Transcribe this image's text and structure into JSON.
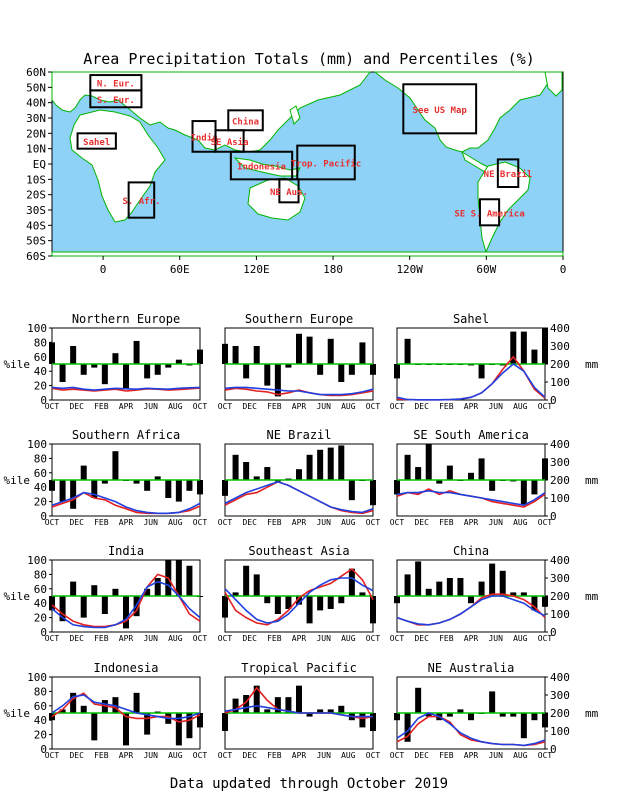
{
  "title": "Area Precipitation Totals (mm) and Percentiles (%)",
  "footer": "Data updated through October 2019",
  "map": {
    "lat_labels": [
      "60N",
      "50N",
      "40N",
      "30N",
      "20N",
      "10N",
      "EQ",
      "10S",
      "20S",
      "30S",
      "40S",
      "50S",
      "60S"
    ],
    "lon_labels": [
      "0",
      "60E",
      "120E",
      "180",
      "120W",
      "60W",
      "0"
    ],
    "regions": [
      {
        "label": "N. Eur.",
        "lon": [
          -10,
          30
        ],
        "lat": [
          48,
          58
        ]
      },
      {
        "label": "S. Eur.",
        "lon": [
          -10,
          30
        ],
        "lat": [
          37,
          48
        ]
      },
      {
        "label": "Sahel",
        "lon": [
          -20,
          10
        ],
        "lat": [
          10,
          20
        ]
      },
      {
        "label": "S. Afr.",
        "lon": [
          20,
          40
        ],
        "lat": [
          -35,
          -12
        ]
      },
      {
        "label": "India",
        "lon": [
          70,
          88
        ],
        "lat": [
          8,
          28
        ]
      },
      {
        "label": "China",
        "lon": [
          98,
          125
        ],
        "lat": [
          22,
          35
        ]
      },
      {
        "label": "SE Asia",
        "lon": [
          88,
          110
        ],
        "lat": [
          8,
          22
        ]
      },
      {
        "label": "Indonesia",
        "lon": [
          100,
          148
        ],
        "lat": [
          -10,
          8
        ]
      },
      {
        "label": "Trop. Pacific",
        "lon": [
          152,
          197
        ],
        "lat": [
          -10,
          12
        ]
      },
      {
        "label": "NE Aus.",
        "lon": [
          138,
          153
        ],
        "lat": [
          -25,
          -10
        ]
      },
      {
        "label": "See US Map",
        "lon": [
          235,
          292
        ],
        "lat": [
          20,
          52
        ]
      },
      {
        "label": "NE Brazil",
        "lon": [
          309,
          325
        ],
        "lat": [
          -15,
          3
        ]
      },
      {
        "label": "SE S. America",
        "lon": [
          295,
          310
        ],
        "lat": [
          -40,
          -23
        ]
      }
    ]
  },
  "panel_axes": {
    "left_ticks": [
      "0",
      "20",
      "40",
      "60",
      "80",
      "100"
    ],
    "right_ticks": [
      "0",
      "100",
      "200",
      "300",
      "400"
    ],
    "left_unit": "%ile",
    "right_unit": "mm",
    "months": [
      "OCT",
      "DEC",
      "FEB",
      "APR",
      "JUN",
      "AUG",
      "OCT"
    ]
  },
  "colors": {
    "ocean": "#8fd2f8",
    "land": "#ffffff",
    "coast": "#00b400",
    "region_box": "#000000",
    "region_label": "#e83030",
    "percentile_bar": "#000000",
    "median_line": "#00c000",
    "red_line": "#e42020",
    "blue_line": "#2040e0"
  },
  "chart_data": [
    {
      "type": "bar",
      "title": "Northern Europe",
      "ylim": [
        0,
        100
      ],
      "y2lim": [
        0,
        400
      ],
      "percentile": [
        80,
        25,
        75,
        35,
        45,
        22,
        65,
        15,
        82,
        30,
        35,
        45,
        56,
        48,
        70
      ],
      "red_mm": [
        65,
        55,
        60,
        55,
        50,
        55,
        60,
        50,
        55,
        62,
        60,
        55,
        58,
        62,
        66
      ],
      "blue_mm": [
        70,
        65,
        70,
        60,
        55,
        60,
        65,
        62,
        60,
        65,
        62,
        60,
        65,
        68,
        70
      ]
    },
    {
      "type": "bar",
      "title": "Southern Europe",
      "ylim": [
        0,
        100
      ],
      "y2lim": [
        0,
        400
      ],
      "percentile": [
        78,
        75,
        30,
        75,
        20,
        5,
        45,
        92,
        88,
        35,
        85,
        25,
        35,
        80,
        35
      ],
      "red_mm": [
        55,
        65,
        60,
        50,
        45,
        30,
        40,
        55,
        40,
        30,
        25,
        25,
        30,
        40,
        50
      ],
      "blue_mm": [
        65,
        70,
        70,
        65,
        60,
        55,
        50,
        50,
        40,
        30,
        30,
        30,
        35,
        45,
        60
      ]
    },
    {
      "type": "bar",
      "title": "Sahel",
      "ylim": [
        0,
        100
      ],
      "y2lim": [
        0,
        400
      ],
      "percentile": [
        30,
        85,
        50,
        50,
        50,
        50,
        50,
        48,
        30,
        50,
        48,
        95,
        95,
        70,
        100
      ],
      "red_mm": [
        5,
        2,
        1,
        1,
        1,
        2,
        5,
        15,
        40,
        90,
        170,
        240,
        160,
        60,
        10
      ],
      "blue_mm": [
        15,
        2,
        1,
        1,
        1,
        2,
        5,
        15,
        40,
        90,
        150,
        200,
        160,
        70,
        15
      ]
    },
    {
      "type": "bar",
      "title": "Southern Africa",
      "ylim": [
        0,
        100
      ],
      "y2lim": [
        0,
        400
      ],
      "percentile": [
        35,
        20,
        10,
        70,
        25,
        45,
        90,
        50,
        45,
        35,
        55,
        25,
        20,
        35,
        30
      ],
      "red_mm": [
        50,
        70,
        90,
        130,
        100,
        90,
        60,
        40,
        20,
        15,
        15,
        15,
        20,
        30,
        55
      ],
      "blue_mm": [
        60,
        80,
        100,
        130,
        120,
        100,
        80,
        50,
        30,
        20,
        15,
        15,
        20,
        40,
        70
      ]
    },
    {
      "type": "bar",
      "title": "NE Brazil",
      "ylim": [
        0,
        100
      ],
      "y2lim": [
        0,
        400
      ],
      "percentile": [
        28,
        85,
        75,
        55,
        68,
        48,
        52,
        65,
        85,
        92,
        95,
        98,
        22,
        50,
        15
      ],
      "red_mm": [
        60,
        90,
        120,
        130,
        160,
        190,
        170,
        140,
        110,
        80,
        50,
        30,
        20,
        15,
        30
      ],
      "blue_mm": [
        70,
        100,
        130,
        150,
        170,
        190,
        170,
        140,
        110,
        80,
        50,
        35,
        25,
        20,
        40
      ]
    },
    {
      "type": "bar",
      "title": "SE South America",
      "ylim": [
        0,
        100
      ],
      "y2lim": [
        0,
        400
      ],
      "percentile": [
        30,
        85,
        68,
        100,
        45,
        70,
        50,
        60,
        80,
        35,
        50,
        48,
        15,
        30,
        80
      ],
      "red_mm": [
        110,
        130,
        120,
        150,
        120,
        140,
        120,
        110,
        100,
        80,
        70,
        60,
        50,
        80,
        120
      ],
      "blue_mm": [
        120,
        130,
        130,
        140,
        130,
        130,
        120,
        110,
        100,
        90,
        80,
        70,
        60,
        90,
        130
      ]
    },
    {
      "type": "bar",
      "title": "India",
      "ylim": [
        0,
        100
      ],
      "y2lim": [
        0,
        400
      ],
      "percentile": [
        30,
        15,
        70,
        20,
        65,
        25,
        60,
        5,
        22,
        60,
        75,
        100,
        100,
        92,
        50
      ],
      "red_mm": [
        150,
        100,
        60,
        40,
        30,
        30,
        40,
        60,
        120,
        250,
        320,
        300,
        200,
        100,
        60
      ],
      "blue_mm": [
        130,
        80,
        40,
        30,
        25,
        25,
        40,
        70,
        150,
        250,
        280,
        260,
        200,
        130,
        80
      ]
    },
    {
      "type": "bar",
      "title": "Southeast Asia",
      "ylim": [
        0,
        100
      ],
      "y2lim": [
        0,
        400
      ],
      "percentile": [
        20,
        55,
        92,
        80,
        40,
        25,
        32,
        38,
        12,
        30,
        32,
        40,
        88,
        55,
        12
      ],
      "red_mm": [
        220,
        120,
        80,
        50,
        40,
        70,
        120,
        190,
        230,
        250,
        270,
        310,
        350,
        290,
        180
      ],
      "blue_mm": [
        240,
        180,
        120,
        70,
        50,
        60,
        100,
        160,
        220,
        260,
        290,
        300,
        300,
        260,
        230
      ]
    },
    {
      "type": "bar",
      "title": "China",
      "ylim": [
        0,
        100
      ],
      "y2lim": [
        0,
        400
      ],
      "percentile": [
        40,
        80,
        98,
        60,
        70,
        75,
        75,
        40,
        70,
        95,
        85,
        55,
        55,
        30,
        35
      ],
      "red_mm": [
        80,
        60,
        40,
        40,
        50,
        70,
        100,
        140,
        190,
        210,
        210,
        200,
        180,
        140,
        80
      ],
      "blue_mm": [
        80,
        60,
        45,
        40,
        50,
        70,
        100,
        140,
        180,
        200,
        200,
        180,
        160,
        120,
        90
      ]
    },
    {
      "type": "bar",
      "title": "Indonesia",
      "ylim": [
        0,
        100
      ],
      "y2lim": [
        0,
        400
      ],
      "percentile": [
        40,
        55,
        78,
        60,
        12,
        68,
        72,
        5,
        78,
        20,
        52,
        35,
        5,
        15,
        30
      ],
      "red_mm": [
        180,
        220,
        280,
        310,
        250,
        240,
        230,
        180,
        170,
        170,
        180,
        180,
        150,
        160,
        190
      ],
      "blue_mm": [
        200,
        240,
        290,
        300,
        260,
        250,
        240,
        220,
        200,
        190,
        180,
        170,
        170,
        180,
        200
      ]
    },
    {
      "type": "bar",
      "title": "Tropical Pacific",
      "ylim": [
        0,
        100
      ],
      "y2lim": [
        0,
        400
      ],
      "percentile": [
        25,
        70,
        75,
        88,
        55,
        72,
        72,
        88,
        45,
        55,
        55,
        60,
        40,
        30,
        25
      ],
      "red_mm": [
        200,
        220,
        260,
        340,
        270,
        220,
        210,
        200,
        200,
        200,
        200,
        190,
        180,
        170,
        180
      ],
      "blue_mm": [
        210,
        220,
        230,
        240,
        230,
        220,
        210,
        200,
        200,
        200,
        200,
        190,
        180,
        180,
        180
      ]
    },
    {
      "type": "bar",
      "title": "NE Australia",
      "ylim": [
        0,
        100
      ],
      "y2lim": [
        0,
        400
      ],
      "percentile": [
        40,
        10,
        85,
        45,
        40,
        45,
        55,
        40,
        50,
        80,
        45,
        45,
        15,
        40,
        30
      ],
      "red_mm": [
        40,
        70,
        140,
        180,
        180,
        150,
        80,
        50,
        40,
        30,
        25,
        25,
        20,
        25,
        40
      ],
      "blue_mm": [
        60,
        100,
        170,
        200,
        180,
        140,
        90,
        60,
        40,
        30,
        25,
        25,
        20,
        30,
        50
      ]
    }
  ]
}
